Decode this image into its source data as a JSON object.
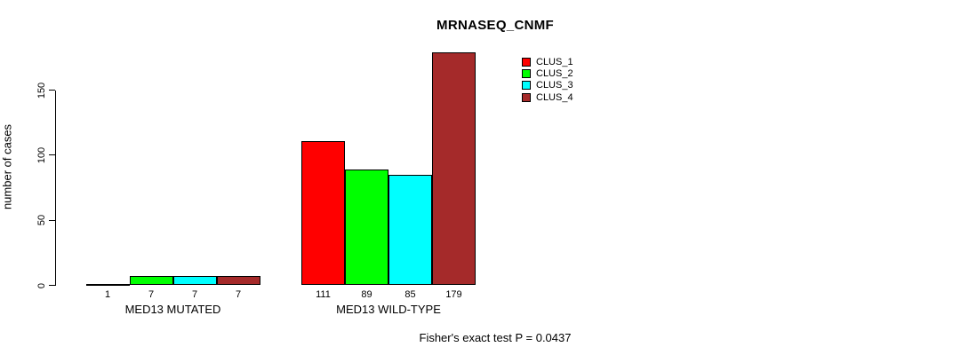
{
  "chart_data": {
    "type": "bar",
    "title": "MRNASEQ_CNMF",
    "ylabel": "number of cases",
    "xlabel": "",
    "ylim": [
      0,
      185
    ],
    "yticks": [
      0,
      50,
      100,
      150
    ],
    "grid": false,
    "legend_position": "top-right",
    "categories": [
      "MED13 MUTATED",
      "MED13 WILD-TYPE"
    ],
    "series": [
      {
        "name": "CLUS_1",
        "color": "#ff0000",
        "values": [
          1,
          111
        ]
      },
      {
        "name": "CLUS_2",
        "color": "#00ff00",
        "values": [
          7,
          89
        ]
      },
      {
        "name": "CLUS_3",
        "color": "#00ffff",
        "values": [
          7,
          85
        ]
      },
      {
        "name": "CLUS_4",
        "color": "#a52a2a",
        "values": [
          7,
          179
        ]
      }
    ],
    "bar_value_labels": [
      [
        1,
        7,
        7,
        7
      ],
      [
        111,
        89,
        85,
        179
      ]
    ],
    "annotation": "Fisher's exact test P = 0.0437",
    "axis_color": "#000000",
    "text_color": "#000000",
    "background_color": "#ffffff"
  }
}
